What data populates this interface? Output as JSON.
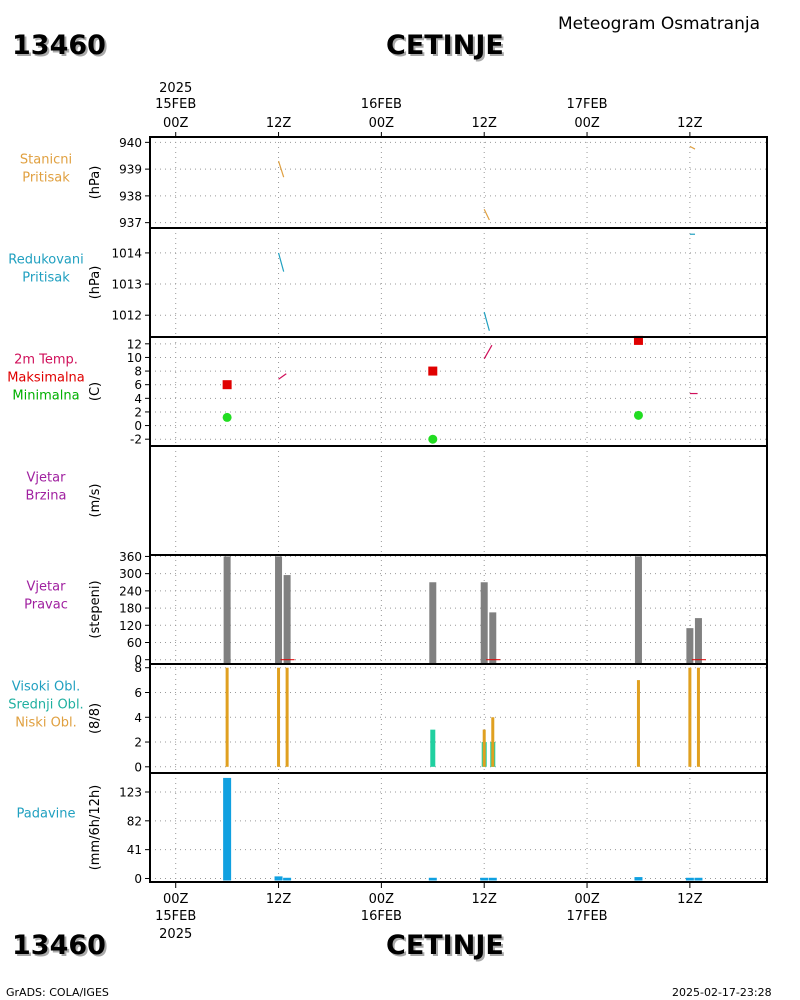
{
  "header": {
    "station_id": "13460",
    "station_name": "CETINJE",
    "title": "Meteogram Osmatranja"
  },
  "footer": {
    "left": "GrADS: COLA/IGES",
    "right": "2025-02-17-23:28"
  },
  "time_axis": {
    "year": "2025",
    "ticks": [
      {
        "hour": 0,
        "time": "00Z",
        "date": "15FEB",
        "year": "2025"
      },
      {
        "hour": 12,
        "time": "12Z",
        "date": "",
        "year": ""
      },
      {
        "hour": 24,
        "time": "00Z",
        "date": "16FEB",
        "year": ""
      },
      {
        "hour": 36,
        "time": "12Z",
        "date": "",
        "year": ""
      },
      {
        "hour": 48,
        "time": "00Z",
        "date": "17FEB",
        "year": ""
      },
      {
        "hour": 60,
        "time": "12Z",
        "date": "",
        "year": ""
      }
    ]
  },
  "chart_data": [
    {
      "type": "line",
      "panel": "stanicni_pritisak",
      "label_lines": [
        "Stanicni",
        "Pritisak"
      ],
      "label_color": "#e0a040",
      "ylabel": "(hPa)",
      "ylim": [
        936.8,
        940.2
      ],
      "yticks": [
        "937",
        "938",
        "939",
        "940"
      ],
      "series": [
        {
          "color": "#e0a040",
          "segments": [
            [
              [
                12.0,
                939.3
              ],
              [
                12.6,
                938.7
              ]
            ],
            [
              [
                36.0,
                937.5
              ],
              [
                36.6,
                937.1
              ]
            ],
            [
              [
                60.0,
                939.85
              ],
              [
                60.6,
                939.75
              ]
            ]
          ]
        }
      ]
    },
    {
      "type": "line",
      "panel": "redukovani_pritisak",
      "label_lines": [
        "Redukovani",
        "Pritisak"
      ],
      "label_color": "#20a0c0",
      "ylabel": "(hPa)",
      "ylim": [
        1011.3,
        1014.8
      ],
      "yticks": [
        "1012",
        "1013",
        "1014"
      ],
      "series": [
        {
          "color": "#20a0c0",
          "segments": [
            [
              [
                12.0,
                1014.0
              ],
              [
                12.6,
                1013.4
              ]
            ],
            [
              [
                36.0,
                1012.1
              ],
              [
                36.6,
                1011.5
              ]
            ],
            [
              [
                60.0,
                1014.6
              ],
              [
                60.6,
                1014.6
              ]
            ]
          ]
        }
      ]
    },
    {
      "type": "scatter",
      "panel": "temperatura",
      "label_lines": [
        "2m Temp.",
        "Maksimalna",
        "Minimalna"
      ],
      "label_colors": [
        "#d0105a",
        "#e00000",
        "#00b000"
      ],
      "ylabel": "(C)",
      "ylim": [
        -3,
        13
      ],
      "yticks": [
        "-2",
        "0",
        "2",
        "4",
        "6",
        "8",
        "10",
        "12"
      ],
      "temp_segments": [
        [
          [
            12.0,
            6.8
          ],
          [
            12.9,
            7.6
          ]
        ],
        [
          [
            36.0,
            9.8
          ],
          [
            36.9,
            11.8
          ]
        ],
        [
          [
            60.0,
            4.7
          ],
          [
            60.9,
            4.7
          ]
        ]
      ],
      "temp_color": "#d0105a",
      "max": {
        "color": "#e00000",
        "points": [
          [
            6,
            6.0
          ],
          [
            30,
            8.0
          ],
          [
            54,
            12.5
          ]
        ]
      },
      "min": {
        "color": "#22dd22",
        "points": [
          [
            6,
            1.2
          ],
          [
            30,
            -2.0
          ],
          [
            54,
            1.5
          ]
        ]
      }
    },
    {
      "type": "bar",
      "panel": "vjetar_brzina",
      "label_lines": [
        "Vjetar",
        "Brzina"
      ],
      "label_color": "#a020a0",
      "ylabel": "(m/s)",
      "yticks": [],
      "values": []
    },
    {
      "type": "bar",
      "panel": "vjetar_pravac",
      "label_lines": [
        "Vjetar",
        "Pravac"
      ],
      "label_color": "#a020a0",
      "ylabel": "(stepeni)",
      "ylim": [
        -15,
        365
      ],
      "yticks": [
        "0",
        "60",
        "120",
        "180",
        "240",
        "300",
        "360"
      ],
      "bar_color": "#808080",
      "bars": [
        [
          6,
          360
        ],
        [
          12,
          360
        ],
        [
          13,
          295
        ],
        [
          30,
          270
        ],
        [
          36,
          270
        ],
        [
          37,
          165
        ],
        [
          54,
          360
        ],
        [
          60,
          110
        ],
        [
          61,
          145
        ]
      ],
      "red_marks": [
        [
          12,
          0
        ],
        [
          36,
          0
        ],
        [
          60,
          0
        ]
      ]
    },
    {
      "type": "bar",
      "panel": "oblacnost",
      "label_lines": [
        "Visoki Obl.",
        "Srednji Obl.",
        "Niski Obl."
      ],
      "label_colors": [
        "#20a0c0",
        "#20b0a0",
        "#e0a040"
      ],
      "ylabel": "(8/8)",
      "ylim": [
        -0.5,
        8.3
      ],
      "yticks": [
        "0",
        "2",
        "4",
        "6",
        "8"
      ],
      "low": {
        "color": "#e0a020",
        "bars": [
          [
            6,
            8
          ],
          [
            12,
            8
          ],
          [
            13,
            8
          ],
          [
            36,
            3
          ],
          [
            37,
            4
          ],
          [
            54,
            7
          ],
          [
            60,
            8
          ],
          [
            61,
            8
          ]
        ]
      },
      "mid": {
        "color": "#20d0a0",
        "bars": [
          [
            30,
            3
          ],
          [
            36,
            2
          ],
          [
            37,
            2
          ]
        ]
      },
      "high": {
        "color": "#20a0c0",
        "bars": []
      }
    },
    {
      "type": "bar",
      "panel": "padavine",
      "label_lines": [
        "Padavine"
      ],
      "label_color": "#20a0c0",
      "ylabel": "(mm/6h/12h)",
      "ylim": [
        -5,
        150
      ],
      "yticks": [
        "0",
        "41",
        "82",
        "123"
      ],
      "bar_color": "#10a0e0",
      "bars": [
        [
          6,
          143
        ],
        [
          12,
          3
        ],
        [
          13,
          1
        ],
        [
          30,
          1
        ],
        [
          36,
          1
        ],
        [
          37,
          1
        ],
        [
          54,
          2
        ],
        [
          60,
          1
        ],
        [
          61,
          1
        ]
      ]
    }
  ]
}
